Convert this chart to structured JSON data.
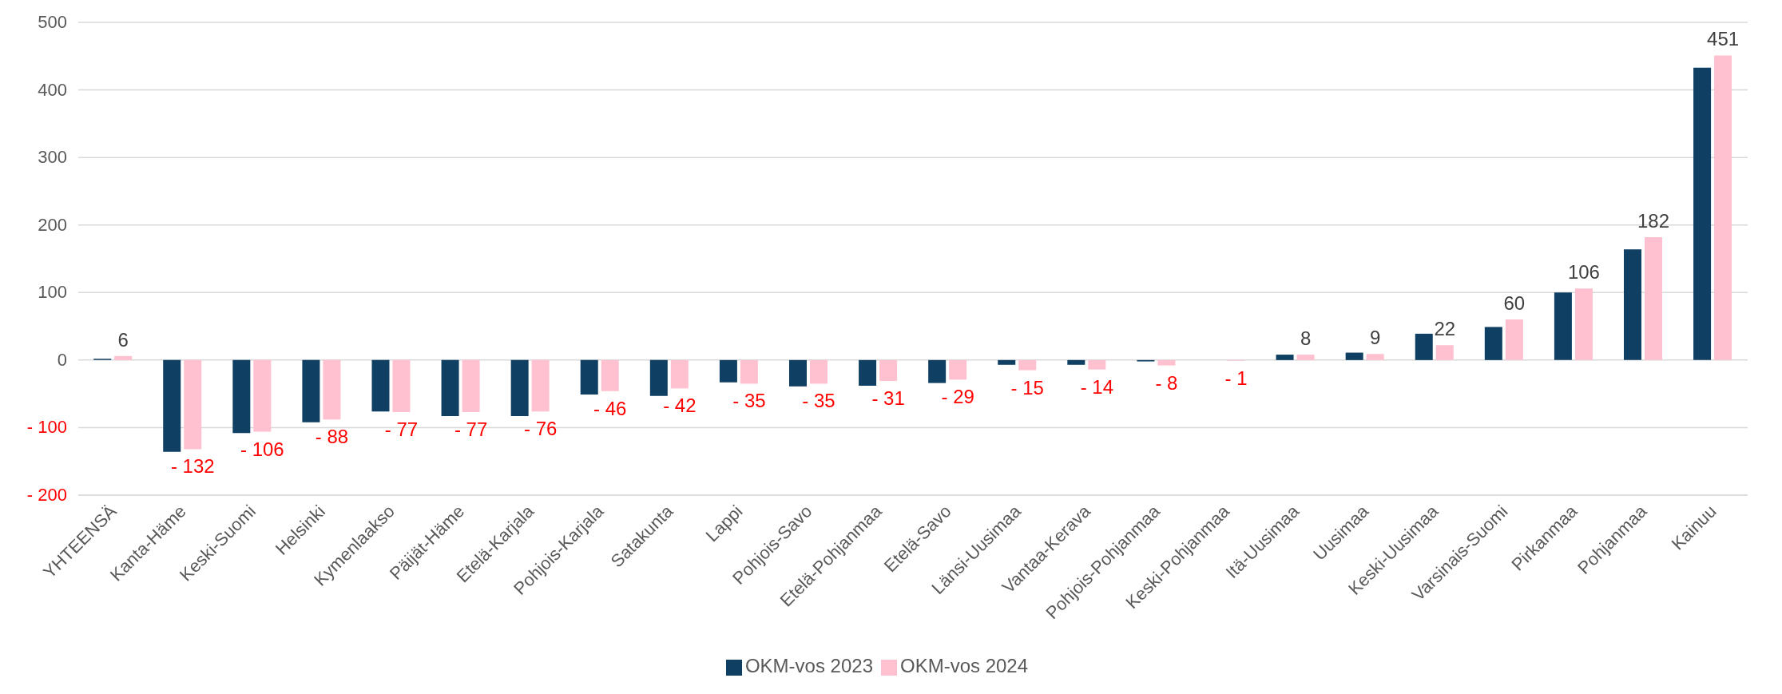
{
  "chart_data": {
    "type": "bar",
    "categories": [
      "YHTEENSÄ",
      "Kanta-Häme",
      "Keski-Suomi",
      "Helsinki",
      "Kymenlaakso",
      "Päijät-Häme",
      "Etelä-Karjala",
      "Pohjois-Karjala",
      "Satakunta",
      "Lappi",
      "Pohjois-Savo",
      "Etelä-Pohjanmaa",
      "Etelä-Savo",
      "Länsi-Uusimaa",
      "Vantaa-Kerava",
      "Pohjois-Pohjanmaa",
      "Keski-Pohjanmaa",
      "Itä-Uusimaa",
      "Uusimaa",
      "Keski-Uusimaa",
      "Varsinais-Suomi",
      "Pirkanmaa",
      "Pohjanmaa",
      "Kainuu"
    ],
    "series": [
      {
        "name": "OKM-vos 2023",
        "color": "#0f3f62",
        "values": [
          2,
          -136,
          -108,
          -92,
          -76,
          -83,
          -83,
          -51,
          -53,
          -33,
          -39,
          -38,
          -34,
          -7,
          -7,
          -2,
          0,
          8,
          11,
          39,
          49,
          100,
          164,
          433
        ]
      },
      {
        "name": "OKM-vos 2024",
        "color": "#ffc0cf",
        "values": [
          6,
          -132,
          -106,
          -88,
          -77,
          -77,
          -76,
          -46,
          -42,
          -35,
          -35,
          -31,
          -29,
          -15,
          -14,
          -8,
          -1,
          8,
          9,
          22,
          60,
          106,
          182,
          451
        ],
        "value_labels": [
          "6",
          "- 132",
          "- 106",
          "- 88",
          "- 77",
          "- 77",
          "- 76",
          "- 46",
          "- 42",
          "- 35",
          "- 35",
          "- 31",
          "- 29",
          "- 15",
          "- 14",
          "- 8",
          "- 1",
          "8",
          "9",
          "22",
          "60",
          "106",
          "182",
          "451"
        ]
      }
    ],
    "ylim": [
      -200,
      500
    ],
    "yticks": [
      {
        "value": -200,
        "label": "- 200"
      },
      {
        "value": -100,
        "label": "- 100"
      },
      0,
      100,
      200,
      300,
      400,
      500
    ],
    "grid": "y",
    "legend": "bottom"
  }
}
